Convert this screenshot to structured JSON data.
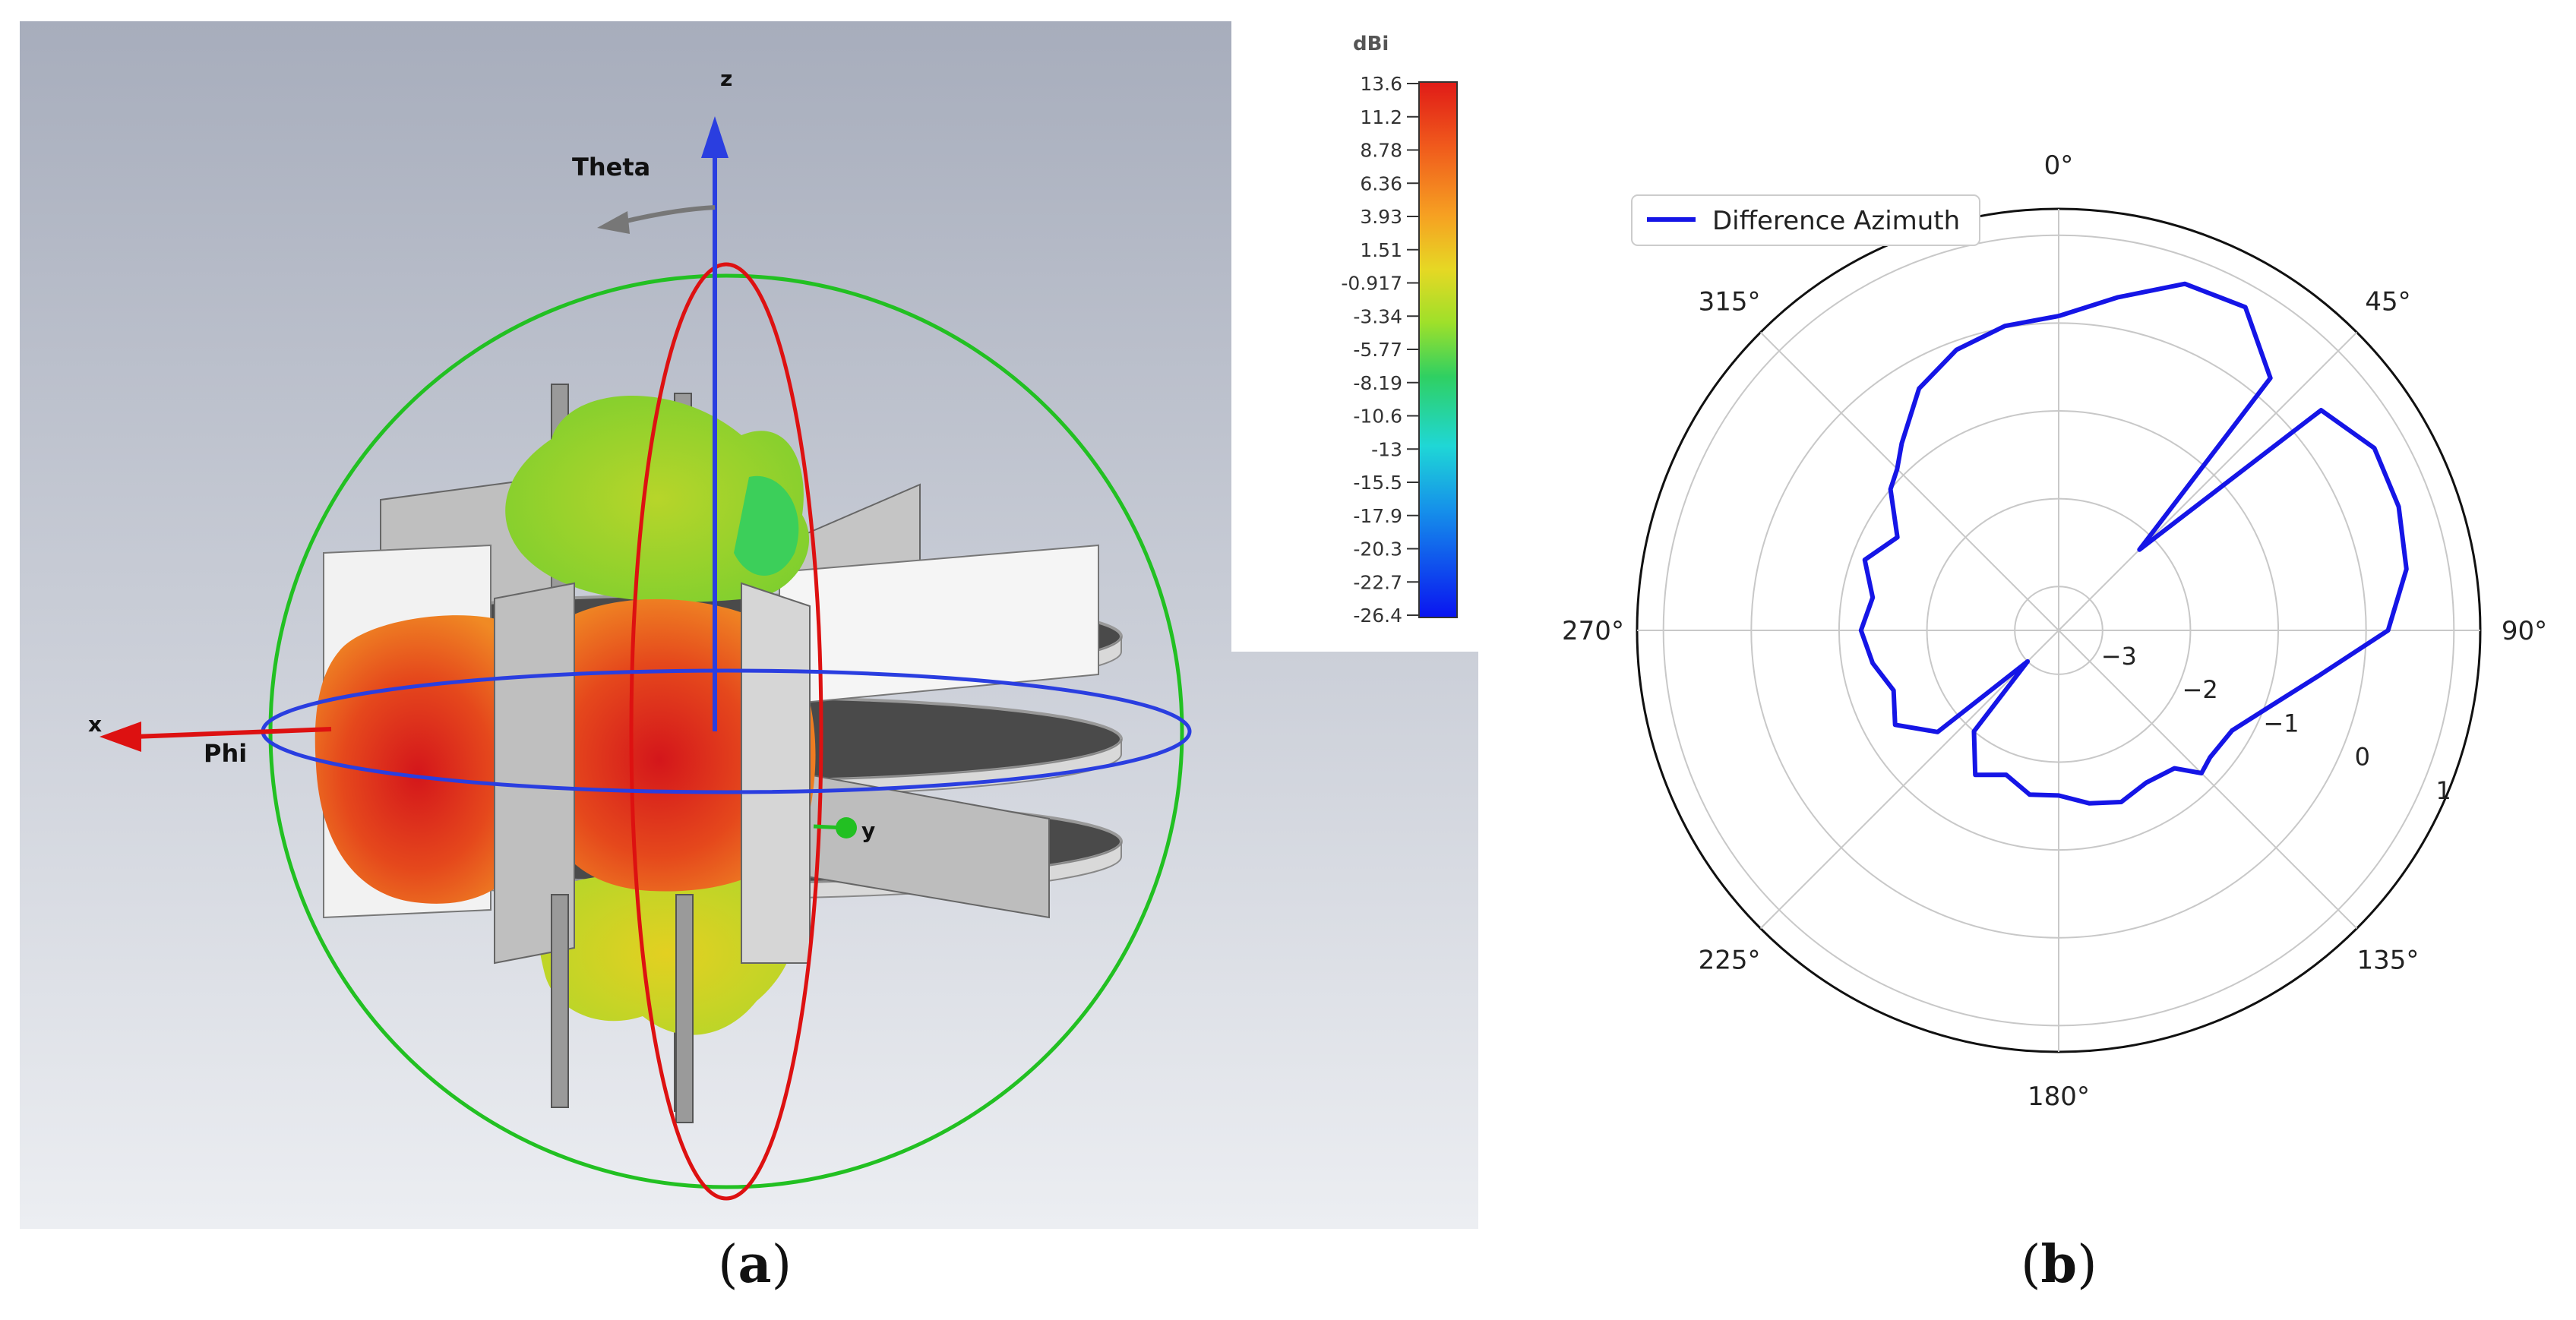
{
  "panel_a": {
    "caption": "a",
    "colorbar": {
      "unit": "dBi",
      "ticks": [
        "13.6",
        "11.2",
        "8.78",
        "6.36",
        "3.93",
        "1.51",
        "-0.917",
        "-3.34",
        "-5.77",
        "-8.19",
        "-10.6",
        "-13",
        "-15.5",
        "-17.9",
        "-20.3",
        "-22.7",
        "-26.4"
      ],
      "colors": [
        "#e01b17",
        "#e8381a",
        "#f05a1c",
        "#f37d1f",
        "#f6a122",
        "#f0c524",
        "#dadd24",
        "#9ee02a",
        "#5ed636",
        "#2fd062",
        "#22d1a0",
        "#1fd7d6",
        "#1ab6e8",
        "#1590ea",
        "#1068ec",
        "#0c3fee",
        "#0a14f0"
      ]
    },
    "axes": {
      "z": "z",
      "x": "x",
      "y": "y",
      "theta": "Theta",
      "phi": "Phi"
    }
  },
  "panel_b": {
    "caption": "b",
    "angle_labels": [
      "0°",
      "45°",
      "90°",
      "135°",
      "180°",
      "225°",
      "270°",
      "315°"
    ],
    "radial_labels": [
      "−3",
      "−2",
      "−1",
      "0",
      "1"
    ],
    "legend": "Difference Azimuth",
    "line_color": "#1515e6"
  },
  "chart_data": [
    {
      "type": "polar",
      "title": "",
      "series": [
        {
          "name": "Difference Azimuth",
          "theta_deg": [
            0,
            10,
            20,
            30,
            40,
            45,
            50,
            60,
            70,
            80,
            90,
            100,
            110,
            120,
            130,
            135,
            140,
            150,
            160,
            170,
            180,
            190,
            200,
            210,
            220,
            225,
            230,
            240,
            250,
            260,
            270,
            280,
            290,
            300,
            310,
            315,
            320,
            330,
            340,
            350
          ],
          "r": [
            0.08,
            0.35,
            0.7,
            0.75,
            0.25,
            -2.2,
            0.4,
            0.65,
            0.62,
            0.52,
            0.25,
            -0.5,
            -0.95,
            -1.22,
            -1.25,
            -1.2,
            -1.45,
            -1.5,
            -1.42,
            -1.5,
            -1.62,
            -1.6,
            -1.75,
            -1.6,
            -2.0,
            -3.0,
            -1.7,
            -1.35,
            -1.5,
            -1.35,
            -1.25,
            -1.35,
            -1.15,
            -1.38,
            -1.0,
            -0.9,
            -0.72,
            -0.32,
            -0.1,
            0.02
          ]
        }
      ],
      "theta_zero": "top",
      "theta_direction": "clockwise",
      "rlim": [
        -3.5,
        1.3
      ],
      "rticks": [
        -3,
        -2,
        -1,
        0,
        1
      ],
      "grid": true,
      "legend_position": "top-left"
    }
  ]
}
